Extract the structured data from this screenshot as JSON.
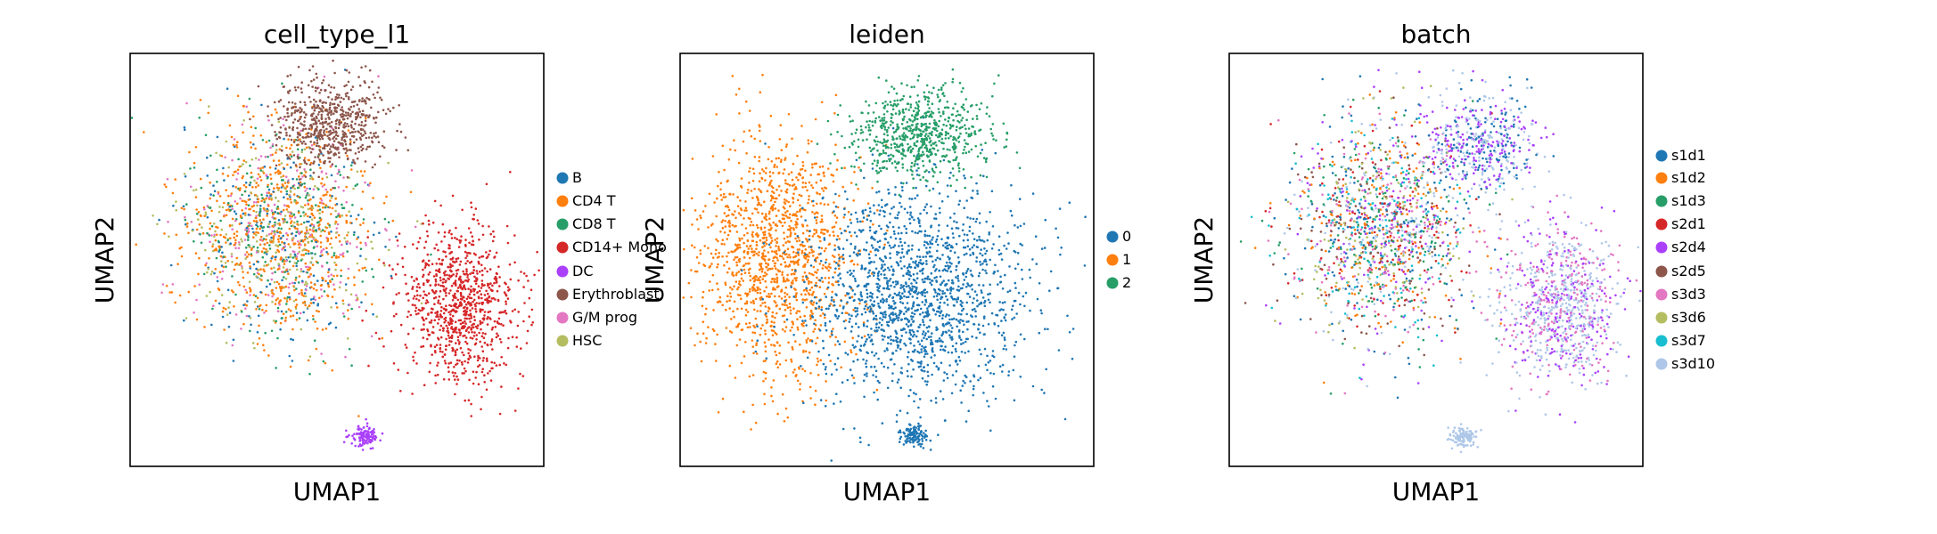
{
  "chart_data": [
    {
      "type": "scatter",
      "title": "cell_type_l1",
      "xlabel": "UMAP1",
      "ylabel": "UMAP2",
      "legend_placement": "right",
      "legend": [
        {
          "label": "B",
          "color": "#1f77b4"
        },
        {
          "label": "CD4 T",
          "color": "#ff7f0e"
        },
        {
          "label": "CD8 T",
          "color": "#279e68"
        },
        {
          "label": "CD14+ Mono",
          "color": "#d62728"
        },
        {
          "label": "DC",
          "color": "#aa40fc"
        },
        {
          "label": "Erythroblast",
          "color": "#8c564b"
        },
        {
          "label": "G/M prog",
          "color": "#e377c2"
        },
        {
          "label": "HSC",
          "color": "#b5bd61"
        }
      ]
    },
    {
      "type": "scatter",
      "title": "leiden",
      "xlabel": "UMAP1",
      "ylabel": "UMAP2",
      "legend_placement": "right",
      "legend": [
        {
          "label": "0",
          "color": "#1f77b4"
        },
        {
          "label": "1",
          "color": "#ff7f0e"
        },
        {
          "label": "2",
          "color": "#279e68"
        }
      ]
    },
    {
      "type": "scatter",
      "title": "batch",
      "xlabel": "UMAP1",
      "ylabel": "UMAP2",
      "legend_placement": "right",
      "legend": [
        {
          "label": "s1d1",
          "color": "#1f77b4"
        },
        {
          "label": "s1d2",
          "color": "#ff7f0e"
        },
        {
          "label": "s1d3",
          "color": "#279e68"
        },
        {
          "label": "s2d1",
          "color": "#d62728"
        },
        {
          "label": "s2d4",
          "color": "#aa40fc"
        },
        {
          "label": "s2d5",
          "color": "#8c564b"
        },
        {
          "label": "s3d3",
          "color": "#e377c2"
        },
        {
          "label": "s3d6",
          "color": "#b5bd61"
        },
        {
          "label": "s3d7",
          "color": "#17becf"
        },
        {
          "label": "s3d10",
          "color": "#aec7e8"
        }
      ]
    }
  ]
}
